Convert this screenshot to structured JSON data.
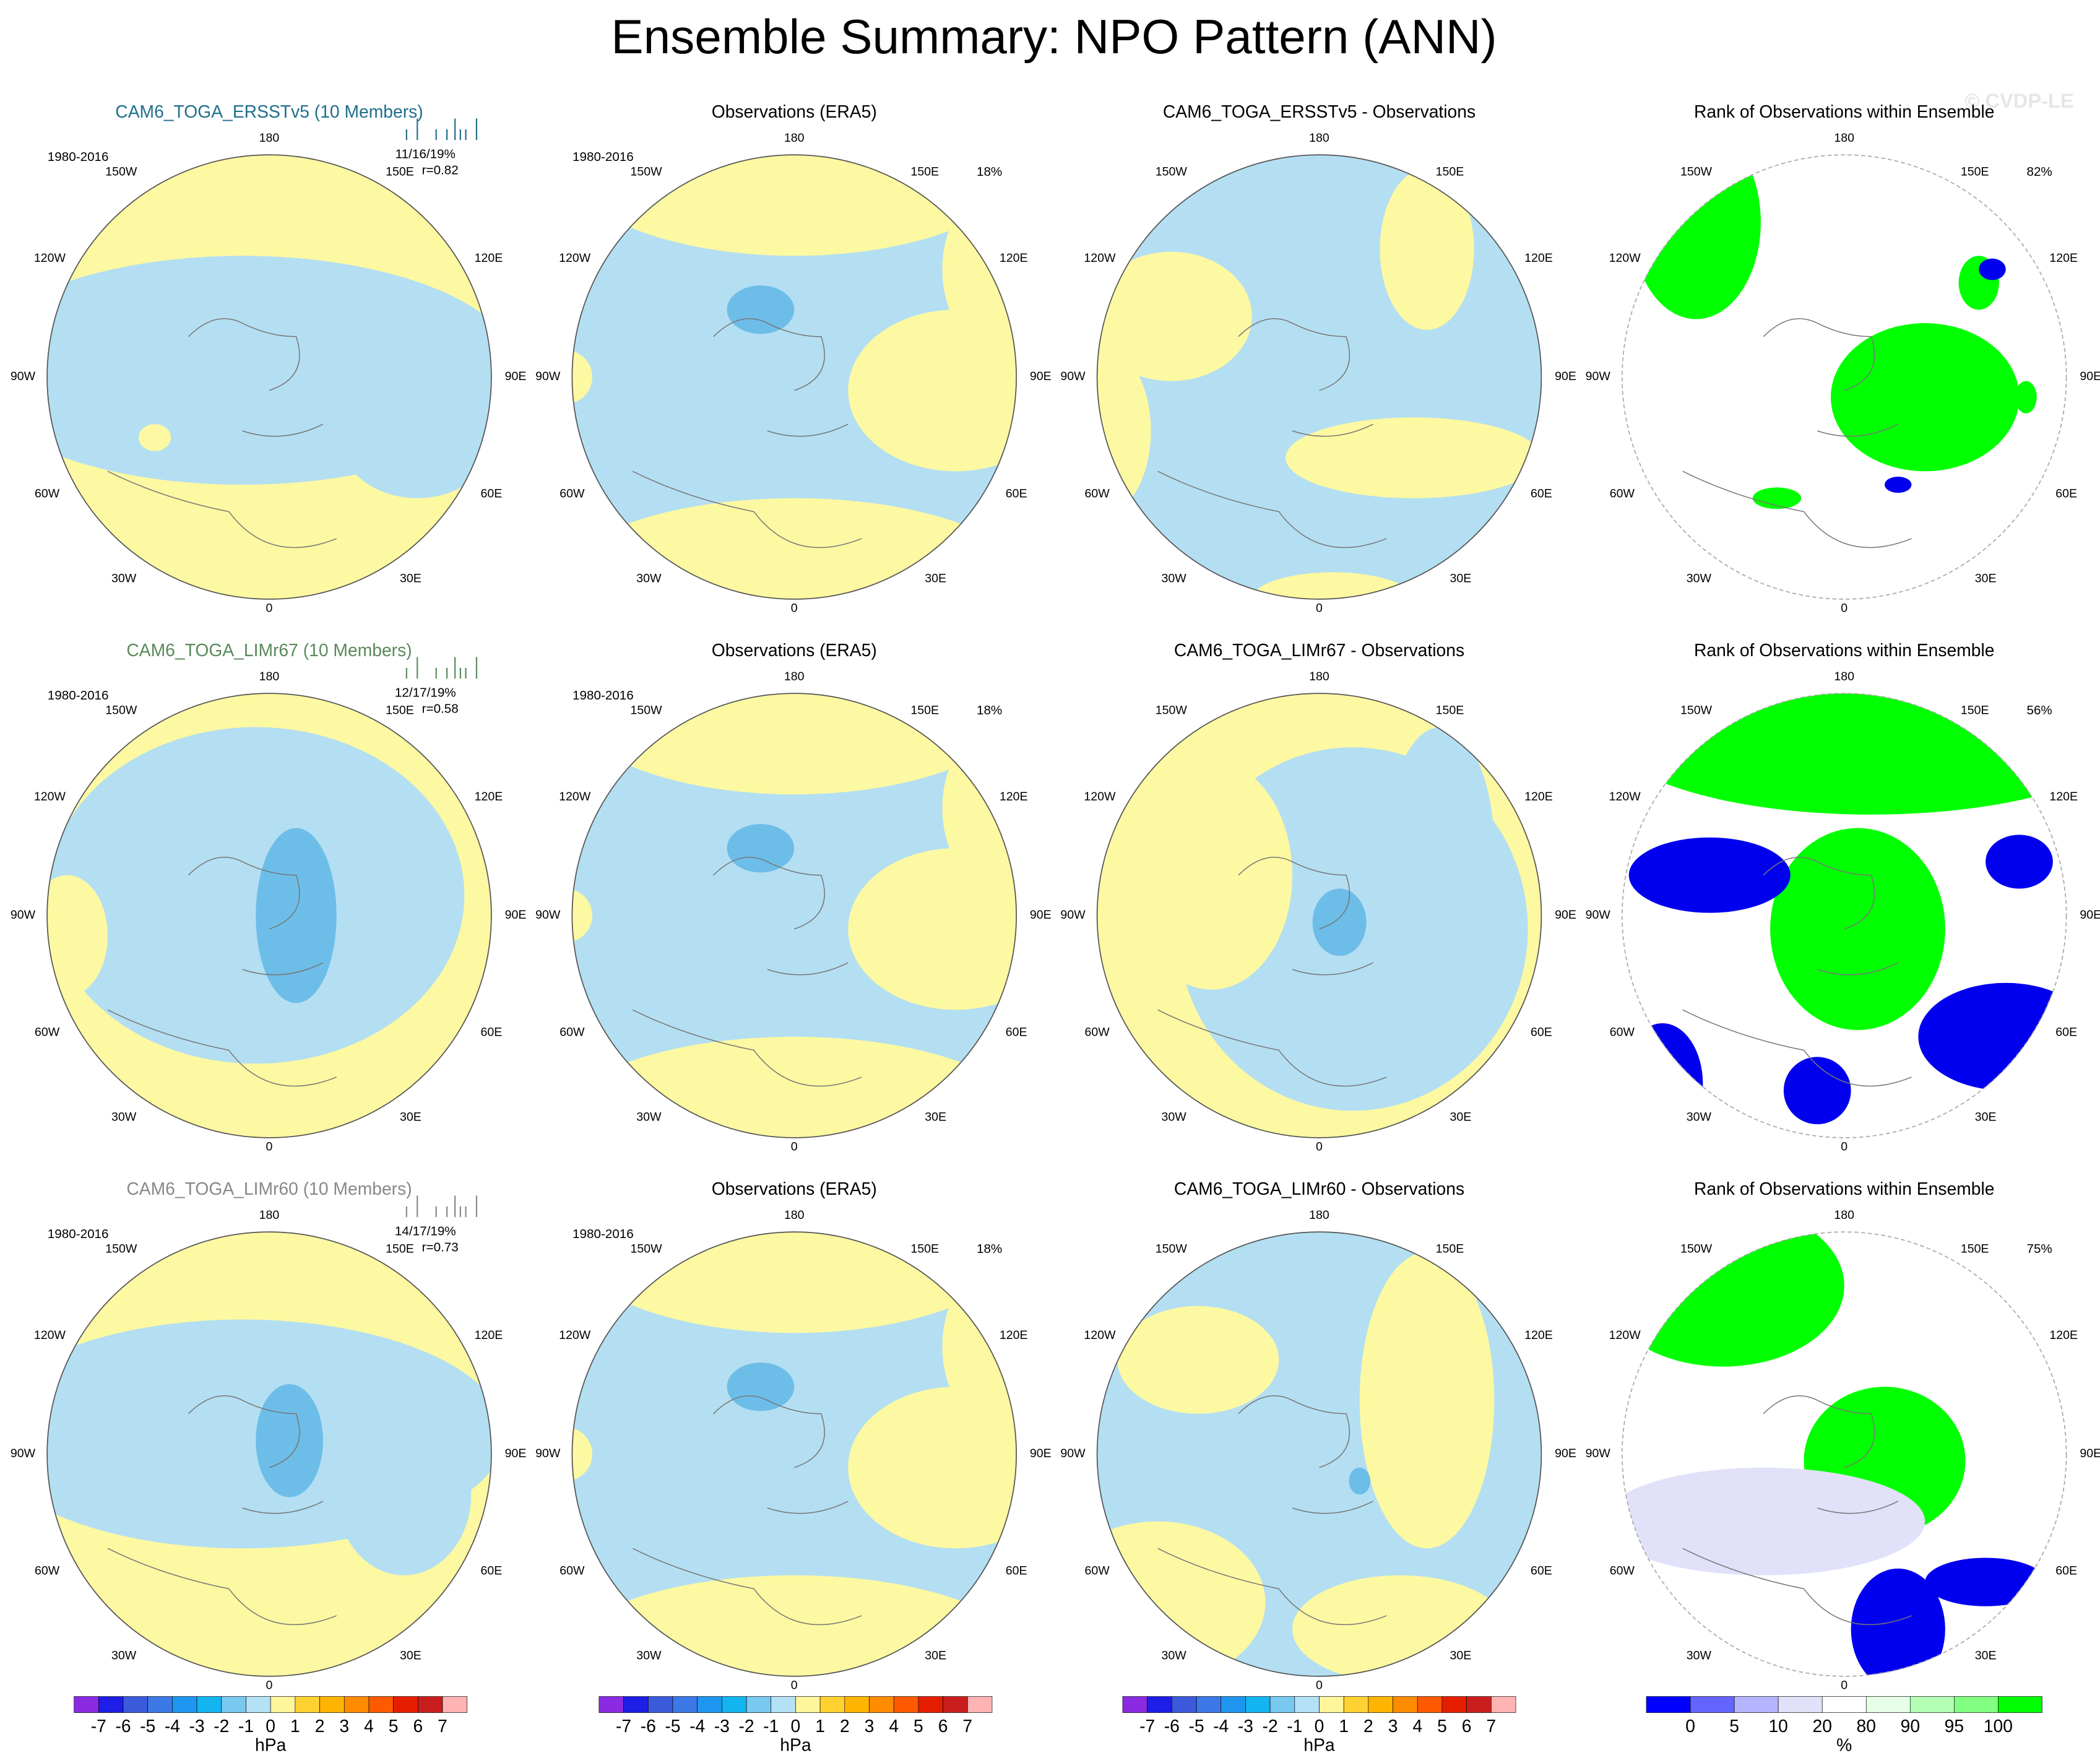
{
  "title": "Ensemble Summary: NPO Pattern (ANN)",
  "watermark": "© CVDP-LE",
  "lon_labels": [
    "180",
    "150E",
    "120E",
    "90E",
    "60E",
    "30E",
    "0",
    "30W",
    "60W",
    "90W",
    "120W",
    "150W"
  ],
  "rows": [
    {
      "panels": [
        {
          "title": "CAM6_TOGA_ERSSTv5 (10 Members)",
          "period": "1980-2016",
          "stats": "11/16/19%",
          "corr": "r=0.82"
        },
        {
          "title": "Observations (ERA5)",
          "period": "1980-2016",
          "pct": "18%"
        },
        {
          "title": "CAM6_TOGA_ERSSTv5 - Observations"
        },
        {
          "title": "Rank of Observations within Ensemble",
          "pct": "82%"
        }
      ]
    },
    {
      "panels": [
        {
          "title": "CAM6_TOGA_LIMr67 (10 Members)",
          "period": "1980-2016",
          "stats": "12/17/19%",
          "corr": "r=0.58"
        },
        {
          "title": "Observations (ERA5)",
          "period": "1980-2016",
          "pct": "18%"
        },
        {
          "title": "CAM6_TOGA_LIMr67 - Observations"
        },
        {
          "title": "Rank of Observations within Ensemble",
          "pct": "56%"
        }
      ]
    },
    {
      "panels": [
        {
          "title": "CAM6_TOGA_LIMr60 (10 Members)",
          "period": "1980-2016",
          "stats": "14/17/19%",
          "corr": "r=0.73"
        },
        {
          "title": "Observations (ERA5)",
          "period": "1980-2016",
          "pct": "18%"
        },
        {
          "title": "CAM6_TOGA_LIMr60 - Observations"
        },
        {
          "title": "Rank of Observations within Ensemble",
          "pct": "75%"
        }
      ]
    }
  ],
  "pressure_colorbar": {
    "labels": [
      -7,
      -6,
      -5,
      -4,
      -3,
      -2,
      -1,
      0,
      1,
      2,
      3,
      4,
      5,
      6,
      7
    ],
    "colors": [
      "#8a2be2",
      "#1e1ee6",
      "#3c5adc",
      "#3c78e6",
      "#1e96f0",
      "#14b4f0",
      "#78c8f0",
      "#b4e1f5",
      "#fff59b",
      "#ffd232",
      "#ffb400",
      "#ff8c00",
      "#ff5a00",
      "#e61e00",
      "#c81e1e",
      "#ffb4b4"
    ],
    "unit": "hPa"
  },
  "rank_colorbar": {
    "labels": [
      0,
      5,
      10,
      20,
      80,
      90,
      95,
      100
    ],
    "colors": [
      "#0000ff",
      "#6464ff",
      "#b4b4ff",
      "#e1e1fa",
      "#ffffff",
      "#e6ffe6",
      "#b4ffb4",
      "#82ff82",
      "#00ff00"
    ],
    "unit": "%"
  }
}
